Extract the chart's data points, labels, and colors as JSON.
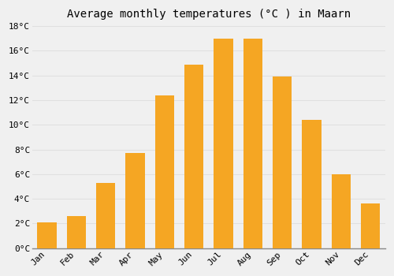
{
  "title": "Average monthly temperatures (°C ) in Maarn",
  "months": [
    "Jan",
    "Feb",
    "Mar",
    "Apr",
    "May",
    "Jun",
    "Jul",
    "Aug",
    "Sep",
    "Oct",
    "Nov",
    "Dec"
  ],
  "values": [
    2.1,
    2.6,
    5.3,
    7.7,
    12.4,
    14.9,
    17.0,
    17.0,
    13.9,
    10.4,
    6.0,
    3.6
  ],
  "bar_color": "#F5A623",
  "ylim": [
    0,
    18
  ],
  "yticks": [
    0,
    2,
    4,
    6,
    8,
    10,
    12,
    14,
    16,
    18
  ],
  "background_color": "#F0F0F0",
  "grid_color": "#E0E0E0",
  "title_fontsize": 10,
  "tick_fontsize": 8,
  "font_family": "monospace"
}
